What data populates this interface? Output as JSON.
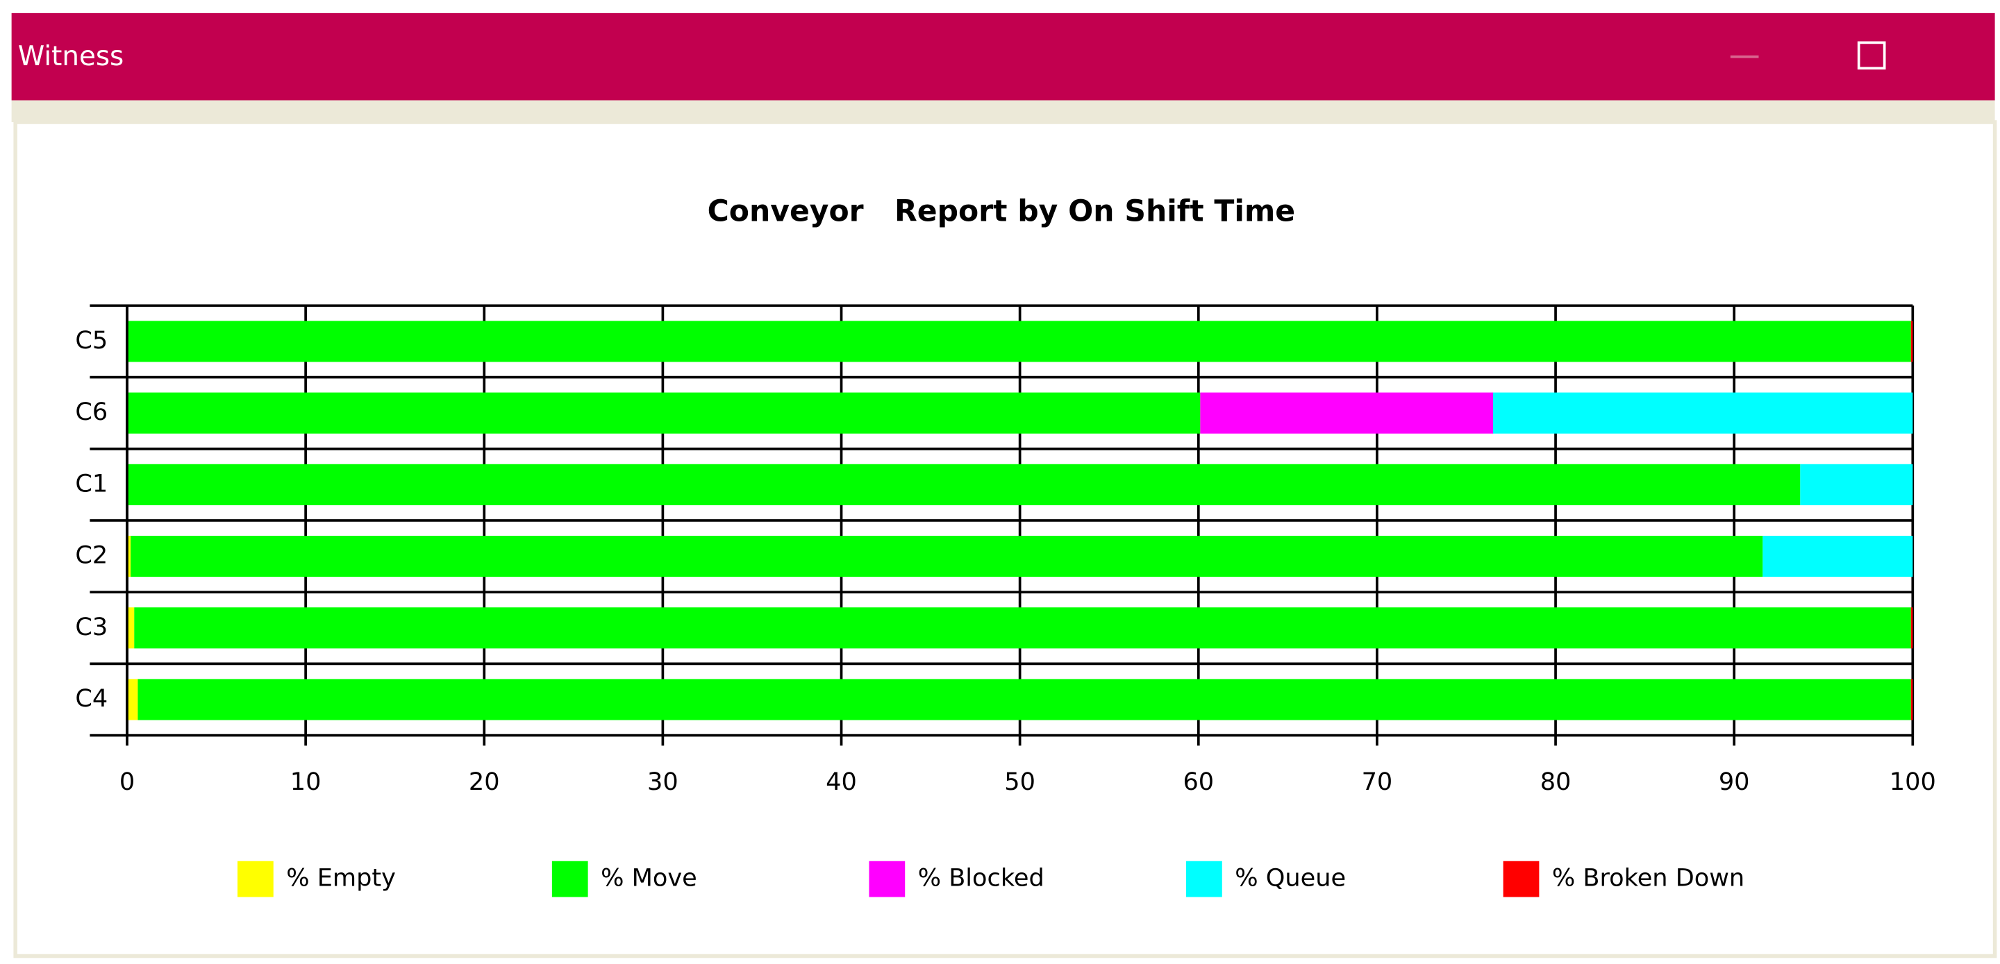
{
  "window": {
    "title": "Witness"
  },
  "chart_data": {
    "type": "stacked-bar-horizontal",
    "title": "Conveyor   Report by On Shift Time",
    "categories": [
      "C5",
      "C6",
      "C1",
      "C2",
      "C3",
      "C4"
    ],
    "series": [
      {
        "name": "% Empty",
        "color": "#ffff00",
        "values": [
          0,
          0,
          0,
          0.2,
          0.4,
          0.6
        ]
      },
      {
        "name": "% Move",
        "color": "#00ff00",
        "values": [
          99.9,
          60.1,
          93.7,
          91.4,
          99.5,
          99.3
        ]
      },
      {
        "name": "% Blocked",
        "color": "#ff00ff",
        "values": [
          0,
          16.4,
          0,
          0,
          0,
          0
        ]
      },
      {
        "name": "% Queue",
        "color": "#00ffff",
        "values": [
          0,
          23.5,
          6.3,
          8.4,
          0,
          0
        ]
      },
      {
        "name": "% Broken Down",
        "color": "#ff0000",
        "values": [
          0.1,
          0,
          0,
          0,
          0.1,
          0.1
        ]
      }
    ],
    "xlim": [
      0,
      100
    ],
    "xticks": [
      0,
      10,
      20,
      30,
      40,
      50,
      60,
      70,
      80,
      90,
      100
    ],
    "grid": true,
    "legend": "bottom"
  }
}
